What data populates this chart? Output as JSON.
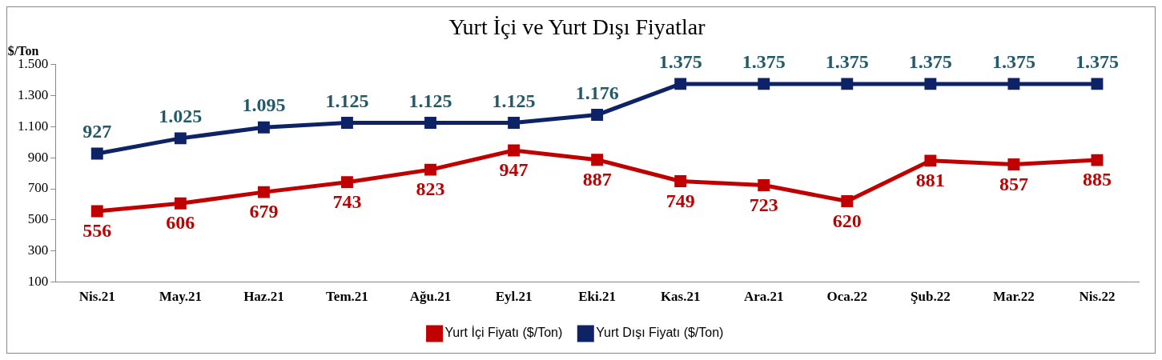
{
  "chart_data": {
    "type": "line",
    "title": "Yurt İçi ve Yurt Dışı Fiyatlar",
    "ylabel": "$/Ton",
    "categories": [
      "Nis.21",
      "May.21",
      "Haz.21",
      "Tem.21",
      "Ağu.21",
      "Eyl.21",
      "Eki.21",
      "Kas.21",
      "Ara.21",
      "Oca.22",
      "Şub.22",
      "Mar.22",
      "Nis.22"
    ],
    "series": [
      {
        "name": "Yurt İçi Fiyatı ($/Ton)",
        "color": "#c00000",
        "values": [
          556,
          606,
          679,
          743,
          823,
          947,
          887,
          749,
          723,
          620,
          881,
          857,
          885
        ],
        "value_labels": [
          "556",
          "606",
          "679",
          "743",
          "823",
          "947",
          "887",
          "749",
          "723",
          "620",
          "881",
          "857",
          "885"
        ]
      },
      {
        "name": "Yurt Dışı Fiyatı ($/Ton)",
        "color": "#0d2366",
        "values": [
          927,
          1025,
          1095,
          1125,
          1125,
          1125,
          1176,
          1375,
          1375,
          1375,
          1375,
          1375,
          1375
        ],
        "value_labels": [
          "927",
          "1.025",
          "1.095",
          "1.125",
          "1.125",
          "1.125",
          "1.176",
          "1.375",
          "1.375",
          "1.375",
          "1.375",
          "1.375",
          "1.375"
        ]
      }
    ],
    "ylim": [
      100,
      1500
    ],
    "yticks": [
      {
        "value": 100,
        "label": "100"
      },
      {
        "value": 300,
        "label": "300"
      },
      {
        "value": 500,
        "label": "500"
      },
      {
        "value": 700,
        "label": "700"
      },
      {
        "value": 900,
        "label": "900"
      },
      {
        "value": 1100,
        "label": "1.100"
      },
      {
        "value": 1300,
        "label": "1.300"
      },
      {
        "value": 1500,
        "label": "1.500"
      }
    ],
    "grid": false,
    "legend": "bottom",
    "marker": "square",
    "line_style": "solid"
  }
}
